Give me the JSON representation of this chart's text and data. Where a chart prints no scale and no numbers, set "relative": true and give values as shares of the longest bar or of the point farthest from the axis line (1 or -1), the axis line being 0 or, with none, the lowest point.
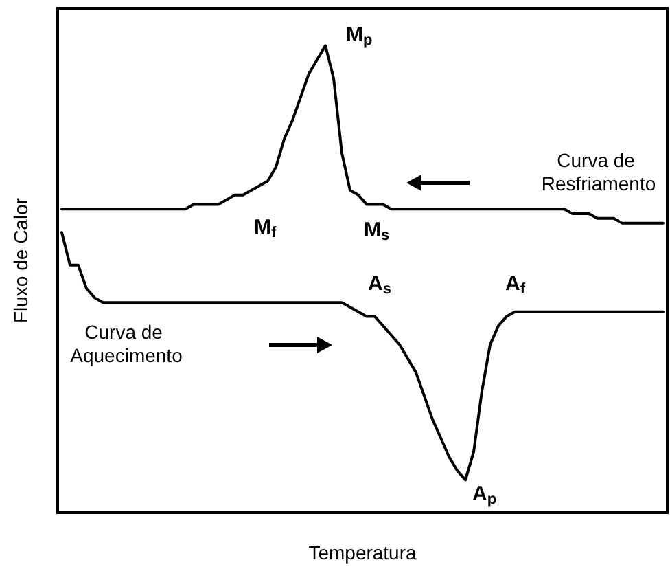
{
  "chart_data": {
    "type": "line",
    "relative": true,
    "xlabel": "Temperatura",
    "ylabel": "Fluxo de Calor",
    "legend": false,
    "grid": false,
    "categories": [
      null,
      null,
      null,
      null,
      null,
      null,
      null,
      null,
      null,
      null,
      null,
      null,
      null,
      null,
      null,
      null,
      null,
      null,
      null,
      null,
      null,
      null,
      null,
      null,
      null,
      null,
      null,
      null,
      null,
      null,
      null,
      null,
      null,
      null,
      null,
      null,
      null,
      null,
      null,
      null,
      null,
      null,
      null,
      null,
      null,
      null,
      null,
      null,
      null,
      null,
      null,
      null,
      null,
      null,
      null,
      null,
      null,
      null,
      null,
      null,
      null,
      null,
      null,
      null,
      null,
      null,
      null,
      null,
      null,
      null,
      null,
      null,
      null,
      null
    ],
    "series": [
      {
        "name": "Curva de Resfriamento",
        "color": "#000000",
        "values": [
          0.65,
          0.65,
          0.65,
          0.65,
          0.65,
          0.65,
          0.65,
          0.65,
          0.65,
          0.65,
          0.65,
          0.65,
          0.65,
          0.65,
          0.65,
          0.65,
          0.66,
          0.66,
          0.66,
          0.66,
          0.67,
          0.68,
          0.68,
          0.69,
          0.7,
          0.71,
          0.74,
          0.8,
          0.84,
          0.89,
          0.94,
          0.97,
          1,
          0.93,
          0.77,
          0.69,
          0.68,
          0.66,
          0.66,
          0.66,
          0.65,
          0.65,
          0.65,
          0.65,
          0.65,
          0.65,
          0.65,
          0.65,
          0.65,
          0.65,
          0.65,
          0.65,
          0.65,
          0.65,
          0.65,
          0.65,
          0.65,
          0.65,
          0.65,
          0.65,
          0.65,
          0.65,
          0.64,
          0.64,
          0.64,
          0.63,
          0.63,
          0.63,
          0.62,
          0.62,
          0.62,
          0.62,
          0.62,
          0.62
        ]
      },
      {
        "name": "Curva de Aquecimento",
        "color": "#000000",
        "values": [
          0.6,
          0.53,
          0.53,
          0.48,
          0.46,
          0.45,
          0.45,
          0.45,
          0.45,
          0.45,
          0.45,
          0.45,
          0.45,
          0.45,
          0.45,
          0.45,
          0.45,
          0.45,
          0.45,
          0.45,
          0.45,
          0.45,
          0.45,
          0.45,
          0.45,
          0.45,
          0.45,
          0.45,
          0.45,
          0.45,
          0.45,
          0.45,
          0.45,
          0.45,
          0.45,
          0.44,
          0.43,
          0.42,
          0.42,
          0.4,
          0.38,
          0.36,
          0.33,
          0.3,
          0.25,
          0.2,
          0.16,
          0.12,
          0.09,
          0.07,
          0.13,
          0.26,
          0.36,
          0.4,
          0.42,
          0.43,
          0.43,
          0.43,
          0.43,
          0.43,
          0.43,
          0.43,
          0.43,
          0.43,
          0.43,
          0.43,
          0.43,
          0.43,
          0.43,
          0.43,
          0.43,
          0.43,
          0.43,
          0.43
        ]
      }
    ],
    "annotations": [
      "M$_{p}$",
      "M$_{f}$",
      "M$_{s}$",
      "A$_{s}$",
      "A$_{f}$",
      "A$_{p}$"
    ]
  }
}
